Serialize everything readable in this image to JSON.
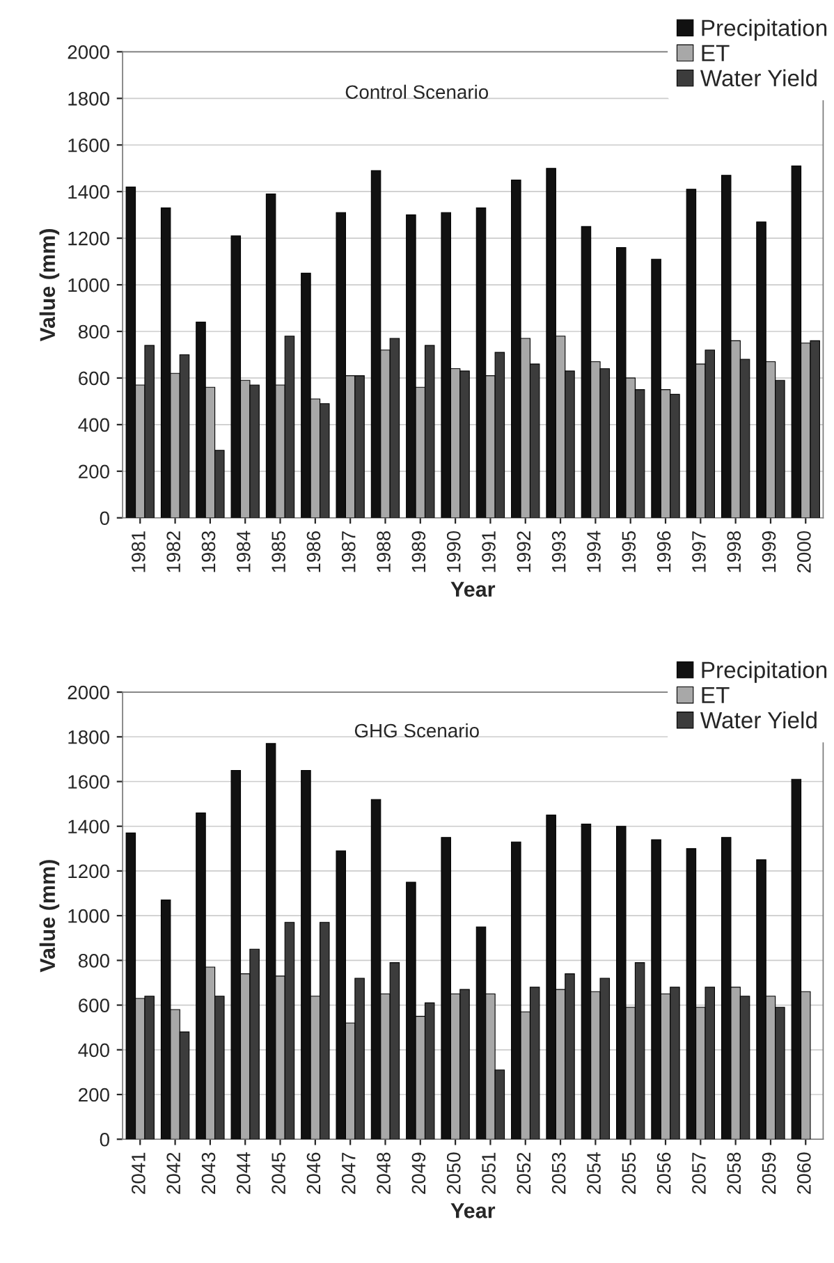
{
  "chart_data": [
    {
      "type": "bar",
      "title": "Control Scenario",
      "xlabel": "Year",
      "ylabel": "Value (mm)",
      "categories": [
        "1981",
        "1982",
        "1983",
        "1984",
        "1985",
        "1986",
        "1987",
        "1988",
        "1989",
        "1990",
        "1991",
        "1992",
        "1993",
        "1994",
        "1995",
        "1996",
        "1997",
        "1998",
        "1999",
        "2000"
      ],
      "series": [
        {
          "name": "Precipitation",
          "color": "#111111",
          "values": [
            1420,
            1330,
            840,
            1210,
            1390,
            1050,
            1310,
            1490,
            1300,
            1310,
            1330,
            1450,
            1500,
            1250,
            1160,
            1110,
            1410,
            1470,
            1270,
            1510
          ]
        },
        {
          "name": "ET",
          "color": "#a8a8a8",
          "values": [
            570,
            620,
            560,
            590,
            570,
            510,
            610,
            720,
            560,
            640,
            610,
            770,
            780,
            670,
            600,
            550,
            660,
            760,
            670,
            750
          ]
        },
        {
          "name": "Water Yield",
          "color": "#3c3c3c",
          "values": [
            740,
            700,
            290,
            570,
            780,
            490,
            610,
            770,
            740,
            630,
            710,
            660,
            630,
            640,
            550,
            530,
            720,
            680,
            590,
            760
          ]
        }
      ],
      "ylim": [
        0,
        2000
      ],
      "yticks": [
        0,
        200,
        400,
        600,
        800,
        1000,
        1200,
        1400,
        1600,
        1800,
        2000
      ],
      "grid": "y",
      "legend": "top right"
    },
    {
      "type": "bar",
      "title": "GHG Scenario",
      "xlabel": "Year",
      "ylabel": "Value (mm)",
      "categories": [
        "2041",
        "2042",
        "2043",
        "2044",
        "2045",
        "2046",
        "2047",
        "2048",
        "2049",
        "2050",
        "2051",
        "2052",
        "2053",
        "2054",
        "2055",
        "2056",
        "2057",
        "2058",
        "2059",
        "2060"
      ],
      "series": [
        {
          "name": "Precipitation",
          "color": "#111111",
          "values": [
            1370,
            1070,
            1460,
            1650,
            1770,
            1650,
            1290,
            1520,
            1150,
            1350,
            950,
            1330,
            1450,
            1410,
            1400,
            1340,
            1300,
            1350,
            1250,
            1610
          ]
        },
        {
          "name": "ET",
          "color": "#a8a8a8",
          "values": [
            630,
            580,
            770,
            740,
            730,
            640,
            520,
            650,
            550,
            650,
            650,
            570,
            670,
            660,
            590,
            650,
            590,
            680,
            640,
            660
          ]
        },
        {
          "name": "Water Yield",
          "color": "#3c3c3c",
          "values": [
            640,
            480,
            640,
            850,
            970,
            970,
            720,
            790,
            610,
            670,
            310,
            680,
            740,
            720,
            790,
            680,
            680,
            640,
            590,
            null
          ]
        }
      ],
      "ylim": [
        0,
        2000
      ],
      "yticks": [
        0,
        200,
        400,
        600,
        800,
        1000,
        1200,
        1400,
        1600,
        1800,
        2000
      ],
      "grid": "y",
      "legend": "top right"
    }
  ]
}
